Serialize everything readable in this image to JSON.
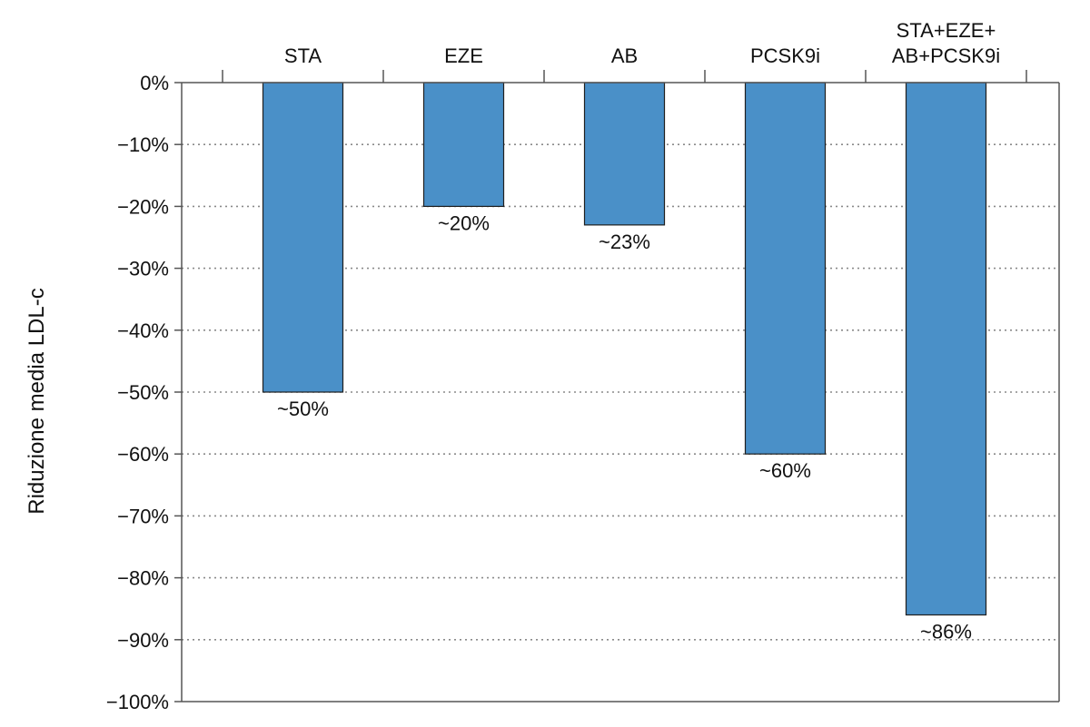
{
  "chart_data": {
    "type": "bar",
    "title": "",
    "xlabel": "",
    "ylabel": "Riduzione media LDL-c",
    "categories": [
      [
        "STA"
      ],
      [
        "EZE"
      ],
      [
        "AB"
      ],
      [
        "PCSK9i"
      ],
      [
        "STA+EZE+",
        "AB+PCSK9i"
      ]
    ],
    "values": [
      -50,
      -20,
      -23,
      -60,
      -86
    ],
    "data_labels": [
      "~50%",
      "~20%",
      "~23%",
      "~60%",
      "~86%"
    ],
    "ylim": [
      -100,
      0
    ],
    "yticks": [
      0,
      -10,
      -20,
      -30,
      -40,
      -50,
      -60,
      -70,
      -80,
      -90,
      -100
    ],
    "ytick_labels": [
      "0%",
      "−10%",
      "−20%",
      "−30%",
      "−40%",
      "−50%",
      "−60%",
      "−70%",
      "−80%",
      "−90%",
      "−100%"
    ],
    "x_axis_position": "top",
    "grid": "horizontal dotted",
    "legend": "none",
    "colors": {
      "bar": "#4a90c8",
      "bar_edge": "#1f1f1f",
      "grid": "#8a8a8a",
      "axis": "#555555"
    }
  }
}
